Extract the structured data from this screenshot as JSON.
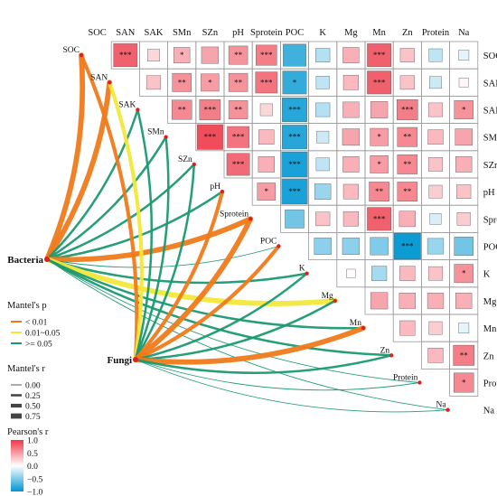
{
  "chart_data": {
    "type": "heatmap",
    "variables": [
      "SOC",
      "SAN",
      "SAK",
      "SMn",
      "SZn",
      "pH",
      "Sprotein",
      "POC",
      "K",
      "Mg",
      "Mn",
      "Zn",
      "Protein",
      "Na"
    ],
    "cells": [
      {
        "row": "SOC",
        "col": "SAN",
        "r": 0.8,
        "sig": "***"
      },
      {
        "row": "SOC",
        "col": "SAK",
        "r": 0.2,
        "sig": ""
      },
      {
        "row": "SOC",
        "col": "SMn",
        "r": 0.4,
        "sig": "*"
      },
      {
        "row": "SOC",
        "col": "SZn",
        "r": 0.45,
        "sig": ""
      },
      {
        "row": "SOC",
        "col": "pH",
        "r": 0.55,
        "sig": "**"
      },
      {
        "row": "SOC",
        "col": "Sprotein",
        "r": 0.65,
        "sig": "***"
      },
      {
        "row": "SOC",
        "col": "POC",
        "r": -0.75,
        "sig": ""
      },
      {
        "row": "SOC",
        "col": "K",
        "r": -0.3,
        "sig": ""
      },
      {
        "row": "SOC",
        "col": "Mg",
        "r": 0.4,
        "sig": ""
      },
      {
        "row": "SOC",
        "col": "Mn",
        "r": 0.8,
        "sig": "***"
      },
      {
        "row": "SOC",
        "col": "Zn",
        "r": 0.3,
        "sig": ""
      },
      {
        "row": "SOC",
        "col": "Protein",
        "r": -0.25,
        "sig": ""
      },
      {
        "row": "SOC",
        "col": "Na",
        "r": -0.1,
        "sig": ""
      },
      {
        "row": "SAN",
        "col": "SAK",
        "r": 0.3,
        "sig": ""
      },
      {
        "row": "SAN",
        "col": "SMn",
        "r": 0.55,
        "sig": "**"
      },
      {
        "row": "SAN",
        "col": "SZn",
        "r": 0.5,
        "sig": "*"
      },
      {
        "row": "SAN",
        "col": "pH",
        "r": 0.55,
        "sig": "**"
      },
      {
        "row": "SAN",
        "col": "Sprotein",
        "r": 0.7,
        "sig": "***"
      },
      {
        "row": "SAN",
        "col": "POC",
        "r": -0.8,
        "sig": "*"
      },
      {
        "row": "SAN",
        "col": "K",
        "r": -0.25,
        "sig": ""
      },
      {
        "row": "SAN",
        "col": "Mg",
        "r": 0.35,
        "sig": ""
      },
      {
        "row": "SAN",
        "col": "Mn",
        "r": 0.8,
        "sig": "***"
      },
      {
        "row": "SAN",
        "col": "Zn",
        "r": 0.3,
        "sig": ""
      },
      {
        "row": "SAN",
        "col": "Protein",
        "r": -0.2,
        "sig": ""
      },
      {
        "row": "SAN",
        "col": "Na",
        "r": 0.05,
        "sig": ""
      },
      {
        "row": "SAK",
        "col": "SMn",
        "r": 0.6,
        "sig": "**"
      },
      {
        "row": "SAK",
        "col": "SZn",
        "r": 0.65,
        "sig": "***"
      },
      {
        "row": "SAK",
        "col": "pH",
        "r": 0.55,
        "sig": "**"
      },
      {
        "row": "SAK",
        "col": "Sprotein",
        "r": 0.2,
        "sig": ""
      },
      {
        "row": "SAK",
        "col": "POC",
        "r": -0.85,
        "sig": "***"
      },
      {
        "row": "SAK",
        "col": "K",
        "r": -0.3,
        "sig": ""
      },
      {
        "row": "SAK",
        "col": "Mg",
        "r": 0.4,
        "sig": ""
      },
      {
        "row": "SAK",
        "col": "Mn",
        "r": 0.45,
        "sig": ""
      },
      {
        "row": "SAK",
        "col": "Zn",
        "r": 0.65,
        "sig": "***"
      },
      {
        "row": "SAK",
        "col": "Protein",
        "r": 0.3,
        "sig": ""
      },
      {
        "row": "SAK",
        "col": "Na",
        "r": 0.55,
        "sig": "*"
      },
      {
        "row": "SMn",
        "col": "SZn",
        "r": 0.9,
        "sig": "***"
      },
      {
        "row": "SMn",
        "col": "pH",
        "r": 0.7,
        "sig": "***"
      },
      {
        "row": "SMn",
        "col": "Sprotein",
        "r": 0.35,
        "sig": ""
      },
      {
        "row": "SMn",
        "col": "POC",
        "r": -0.85,
        "sig": "***"
      },
      {
        "row": "SMn",
        "col": "K",
        "r": -0.2,
        "sig": ""
      },
      {
        "row": "SMn",
        "col": "Mg",
        "r": 0.45,
        "sig": ""
      },
      {
        "row": "SMn",
        "col": "Mn",
        "r": 0.5,
        "sig": "*"
      },
      {
        "row": "SMn",
        "col": "Zn",
        "r": 0.6,
        "sig": "**"
      },
      {
        "row": "SMn",
        "col": "Protein",
        "r": 0.35,
        "sig": ""
      },
      {
        "row": "SMn",
        "col": "Na",
        "r": 0.45,
        "sig": ""
      },
      {
        "row": "SZn",
        "col": "pH",
        "r": 0.75,
        "sig": "***"
      },
      {
        "row": "SZn",
        "col": "Sprotein",
        "r": 0.4,
        "sig": ""
      },
      {
        "row": "SZn",
        "col": "POC",
        "r": -0.9,
        "sig": "***"
      },
      {
        "row": "SZn",
        "col": "K",
        "r": -0.25,
        "sig": ""
      },
      {
        "row": "SZn",
        "col": "Mg",
        "r": 0.4,
        "sig": ""
      },
      {
        "row": "SZn",
        "col": "Mn",
        "r": 0.5,
        "sig": "*"
      },
      {
        "row": "SZn",
        "col": "Zn",
        "r": 0.6,
        "sig": "**"
      },
      {
        "row": "SZn",
        "col": "Protein",
        "r": 0.3,
        "sig": ""
      },
      {
        "row": "SZn",
        "col": "Na",
        "r": 0.4,
        "sig": ""
      },
      {
        "row": "pH",
        "col": "Sprotein",
        "r": 0.5,
        "sig": "*"
      },
      {
        "row": "pH",
        "col": "POC",
        "r": -0.9,
        "sig": "***"
      },
      {
        "row": "pH",
        "col": "K",
        "r": -0.4,
        "sig": ""
      },
      {
        "row": "pH",
        "col": "Mg",
        "r": 0.35,
        "sig": ""
      },
      {
        "row": "pH",
        "col": "Mn",
        "r": 0.6,
        "sig": "**"
      },
      {
        "row": "pH",
        "col": "Zn",
        "r": 0.6,
        "sig": "**"
      },
      {
        "row": "pH",
        "col": "Protein",
        "r": 0.25,
        "sig": ""
      },
      {
        "row": "pH",
        "col": "Na",
        "r": 0.3,
        "sig": ""
      },
      {
        "row": "Sprotein",
        "col": "POC",
        "r": -0.55,
        "sig": ""
      },
      {
        "row": "Sprotein",
        "col": "K",
        "r": 0.3,
        "sig": ""
      },
      {
        "row": "Sprotein",
        "col": "Mg",
        "r": 0.35,
        "sig": ""
      },
      {
        "row": "Sprotein",
        "col": "Mn",
        "r": 0.8,
        "sig": "***"
      },
      {
        "row": "Sprotein",
        "col": "Zn",
        "r": 0.4,
        "sig": ""
      },
      {
        "row": "Sprotein",
        "col": "Protein",
        "r": -0.15,
        "sig": ""
      },
      {
        "row": "Sprotein",
        "col": "Na",
        "r": 0.25,
        "sig": ""
      },
      {
        "row": "POC",
        "col": "K",
        "r": -0.45,
        "sig": ""
      },
      {
        "row": "POC",
        "col": "Mg",
        "r": -0.45,
        "sig": ""
      },
      {
        "row": "POC",
        "col": "Mn",
        "r": -0.5,
        "sig": ""
      },
      {
        "row": "POC",
        "col": "Zn",
        "r": -0.95,
        "sig": "***"
      },
      {
        "row": "POC",
        "col": "Protein",
        "r": -0.4,
        "sig": ""
      },
      {
        "row": "POC",
        "col": "Na",
        "r": -0.55,
        "sig": ""
      },
      {
        "row": "K",
        "col": "Mg",
        "r": 0.02,
        "sig": ""
      },
      {
        "row": "K",
        "col": "Mn",
        "r": -0.35,
        "sig": ""
      },
      {
        "row": "K",
        "col": "Zn",
        "r": 0.35,
        "sig": ""
      },
      {
        "row": "K",
        "col": "Protein",
        "r": 0.3,
        "sig": ""
      },
      {
        "row": "K",
        "col": "Na",
        "r": 0.55,
        "sig": "*"
      },
      {
        "row": "Mg",
        "col": "Mn",
        "r": 0.45,
        "sig": ""
      },
      {
        "row": "Mg",
        "col": "Zn",
        "r": 0.4,
        "sig": ""
      },
      {
        "row": "Mg",
        "col": "Protein",
        "r": 0.4,
        "sig": ""
      },
      {
        "row": "Mg",
        "col": "Na",
        "r": 0.4,
        "sig": ""
      },
      {
        "row": "Mn",
        "col": "Zn",
        "r": 0.35,
        "sig": ""
      },
      {
        "row": "Mn",
        "col": "Protein",
        "r": 0.25,
        "sig": ""
      },
      {
        "row": "Mn",
        "col": "Na",
        "r": -0.1,
        "sig": ""
      },
      {
        "row": "Zn",
        "col": "Protein",
        "r": 0.35,
        "sig": ""
      },
      {
        "row": "Zn",
        "col": "Na",
        "r": 0.65,
        "sig": "**"
      },
      {
        "row": "Protein",
        "col": "Na",
        "r": 0.6,
        "sig": "*"
      }
    ],
    "mantel_links": [
      {
        "from": "Bacteria",
        "to": "SOC",
        "p": "< 0.01",
        "r": 0.75
      },
      {
        "from": "Bacteria",
        "to": "SAN",
        "p": "< 0.01",
        "r": 0.75
      },
      {
        "from": "Bacteria",
        "to": "SAK",
        "p": ">= 0.05",
        "r": 0.25
      },
      {
        "from": "Bacteria",
        "to": "SMn",
        "p": ">= 0.05",
        "r": 0.25
      },
      {
        "from": "Bacteria",
        "to": "SZn",
        "p": ">= 0.05",
        "r": 0.25
      },
      {
        "from": "Bacteria",
        "to": "pH",
        "p": ">= 0.05",
        "r": 0.25
      },
      {
        "from": "Bacteria",
        "to": "Sprotein",
        "p": "< 0.01",
        "r": 0.75
      },
      {
        "from": "Bacteria",
        "to": "POC",
        "p": ">= 0.05",
        "r": 0.0
      },
      {
        "from": "Bacteria",
        "to": "K",
        "p": ">= 0.05",
        "r": 0.25
      },
      {
        "from": "Bacteria",
        "to": "Mg",
        "p": "0.01~0.05",
        "r": 0.75
      },
      {
        "from": "Bacteria",
        "to": "Mn",
        "p": ">= 0.05",
        "r": 0.25
      },
      {
        "from": "Bacteria",
        "to": "Zn",
        "p": ">= 0.05",
        "r": 0.25
      },
      {
        "from": "Bacteria",
        "to": "Protein",
        "p": ">= 0.05",
        "r": 0.0
      },
      {
        "from": "Bacteria",
        "to": "Na",
        "p": ">= 0.05",
        "r": 0.0
      },
      {
        "from": "Fungi",
        "to": "SOC",
        "p": "< 0.01",
        "r": 0.5
      },
      {
        "from": "Fungi",
        "to": "SAN",
        "p": "0.01~0.05",
        "r": 0.5
      },
      {
        "from": "Fungi",
        "to": "SAK",
        "p": ">= 0.05",
        "r": 0.25
      },
      {
        "from": "Fungi",
        "to": "SMn",
        "p": ">= 0.05",
        "r": 0.25
      },
      {
        "from": "Fungi",
        "to": "SZn",
        "p": ">= 0.05",
        "r": 0.25
      },
      {
        "from": "Fungi",
        "to": "pH",
        "p": "< 0.01",
        "r": 0.5
      },
      {
        "from": "Fungi",
        "to": "Sprotein",
        "p": "< 0.01",
        "r": 0.75
      },
      {
        "from": "Fungi",
        "to": "POC",
        "p": "< 0.01",
        "r": 0.5
      },
      {
        "from": "Fungi",
        "to": "K",
        "p": ">= 0.05",
        "r": 0.25
      },
      {
        "from": "Fungi",
        "to": "Mg",
        "p": ">= 0.05",
        "r": 0.25
      },
      {
        "from": "Fungi",
        "to": "Mn",
        "p": "< 0.01",
        "r": 0.75
      },
      {
        "from": "Fungi",
        "to": "Zn",
        "p": ">= 0.05",
        "r": 0.25
      },
      {
        "from": "Fungi",
        "to": "Protein",
        "p": ">= 0.05",
        "r": 0.0
      },
      {
        "from": "Fungi",
        "to": "Na",
        "p": ">= 0.05",
        "r": 0.0
      }
    ],
    "groups": [
      "Bacteria",
      "Fungi"
    ],
    "legend": {
      "mantel_p": {
        "title": "Mantel's p",
        "items": [
          {
            "label": "< 0.01",
            "color": "#f07a1a"
          },
          {
            "label": "0.01~0.05",
            "color": "#f2e83a"
          },
          {
            "label": ">= 0.05",
            "color": "#1a9970"
          }
        ]
      },
      "mantel_r": {
        "title": "Mantel's r",
        "items": [
          {
            "label": "0.00",
            "value": 0.0
          },
          {
            "label": "0.25",
            "value": 0.25
          },
          {
            "label": "0.50",
            "value": 0.5
          },
          {
            "label": "0.75",
            "value": 0.75
          }
        ]
      },
      "pearson": {
        "title": "Pearson's r",
        "ticks": [
          {
            "label": "1.0",
            "value": 1.0
          },
          {
            "label": "0.5",
            "value": 0.5
          },
          {
            "label": "0.0",
            "value": 0.0
          },
          {
            "label": "−0.5",
            "value": -0.5
          },
          {
            "label": "−1.0",
            "value": -1.0
          }
        ]
      }
    }
  }
}
